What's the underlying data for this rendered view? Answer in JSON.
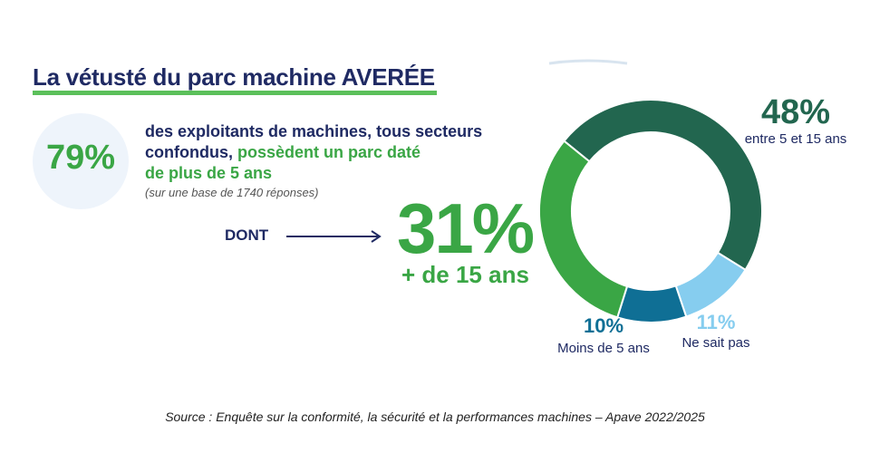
{
  "title": "La vétusté du parc machine AVERÉE",
  "stat": {
    "value": "79%",
    "line1": "des exploitants de machines, tous secteurs",
    "line2_plain": "confondus, ",
    "line2_green": "possèdent un parc daté",
    "line3_green": "de plus de 5 ans",
    "note": "(sur une base de 1740 réponses)"
  },
  "dont": {
    "label": "DONT",
    "value": "31%",
    "sublabel": "+ de 15 ans"
  },
  "chart_data": {
    "type": "pie",
    "donut": true,
    "slices": [
      {
        "label": "entre 5 et 15 ans",
        "value": 48,
        "value_label": "48%",
        "color": "#22664f"
      },
      {
        "label": "Ne sait pas",
        "value": 11,
        "value_label": "11%",
        "color": "#86cdef"
      },
      {
        "label": "Moins de 5 ans",
        "value": 10,
        "value_label": "10%",
        "color": "#0f6f95"
      },
      {
        "label": "+ de 15 ans",
        "value": 31,
        "value_label": "31%",
        "color": "#3aa645"
      }
    ]
  },
  "source": "Source : Enquête sur la conformité, la sécurité et la performances machines – Apave 2022/2025",
  "colors": {
    "navy": "#1f2a63",
    "green": "#3aa645"
  }
}
